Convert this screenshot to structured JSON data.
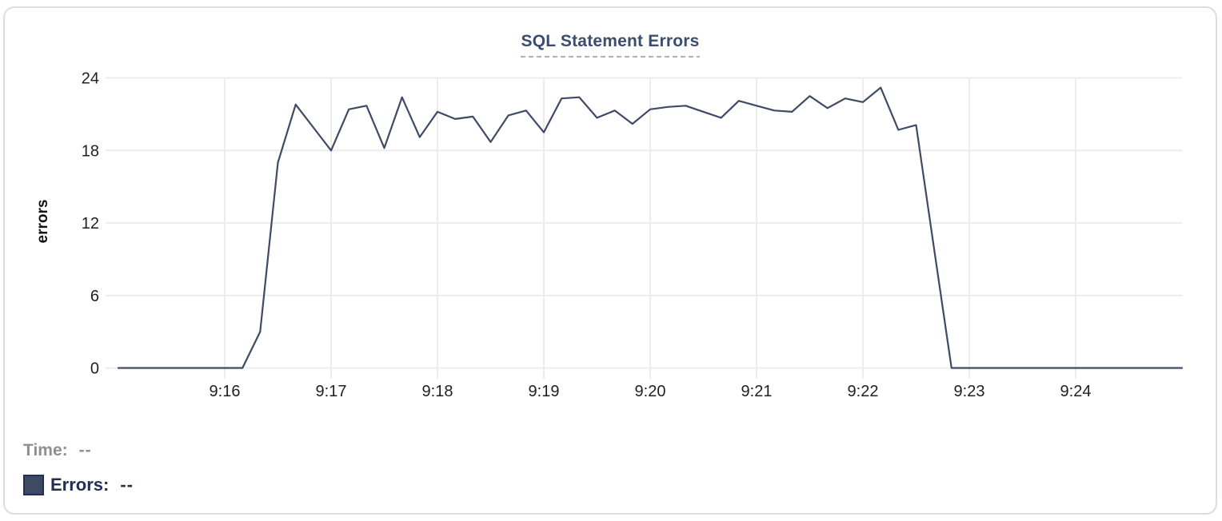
{
  "chart_data": {
    "type": "line",
    "title": "SQL Statement Errors",
    "xlabel": "",
    "ylabel": "errors",
    "x_tick_labels": [
      "9:16",
      "9:17",
      "9:18",
      "9:19",
      "9:20",
      "9:21",
      "9:22",
      "9:23",
      "9:24"
    ],
    "y_ticks": [
      0,
      6,
      12,
      18,
      24
    ],
    "ylim": [
      0,
      24
    ],
    "x_range": [
      "9:15:00",
      "9:25:00"
    ],
    "grid": true,
    "legend_position": "below-left",
    "series": [
      {
        "name": "Errors",
        "color": "#3e4a66",
        "points": [
          [
            "9:15:00",
            0
          ],
          [
            "9:15:10",
            0
          ],
          [
            "9:15:20",
            0
          ],
          [
            "9:15:30",
            0
          ],
          [
            "9:15:40",
            0
          ],
          [
            "9:15:50",
            0
          ],
          [
            "9:16:00",
            0
          ],
          [
            "9:16:10",
            0
          ],
          [
            "9:16:20",
            3
          ],
          [
            "9:16:30",
            17
          ],
          [
            "9:16:40",
            21.8
          ],
          [
            "9:16:50",
            19.9
          ],
          [
            "9:17:00",
            18
          ],
          [
            "9:17:10",
            21.4
          ],
          [
            "9:17:20",
            21.7
          ],
          [
            "9:17:30",
            18.2
          ],
          [
            "9:17:40",
            22.4
          ],
          [
            "9:17:50",
            19.1
          ],
          [
            "9:18:00",
            21.2
          ],
          [
            "9:18:10",
            20.6
          ],
          [
            "9:18:20",
            20.8
          ],
          [
            "9:18:30",
            18.7
          ],
          [
            "9:18:40",
            20.9
          ],
          [
            "9:18:50",
            21.3
          ],
          [
            "9:19:00",
            19.5
          ],
          [
            "9:19:10",
            22.3
          ],
          [
            "9:19:20",
            22.4
          ],
          [
            "9:19:30",
            20.7
          ],
          [
            "9:19:40",
            21.3
          ],
          [
            "9:19:50",
            20.2
          ],
          [
            "9:20:00",
            21.4
          ],
          [
            "9:20:10",
            21.6
          ],
          [
            "9:20:20",
            21.7
          ],
          [
            "9:20:30",
            21.2
          ],
          [
            "9:20:40",
            20.7
          ],
          [
            "9:20:50",
            22.1
          ],
          [
            "9:21:00",
            21.7
          ],
          [
            "9:21:10",
            21.3
          ],
          [
            "9:21:20",
            21.2
          ],
          [
            "9:21:30",
            22.5
          ],
          [
            "9:21:40",
            21.5
          ],
          [
            "9:21:50",
            22.3
          ],
          [
            "9:22:00",
            22.0
          ],
          [
            "9:22:10",
            23.2
          ],
          [
            "9:22:20",
            19.7
          ],
          [
            "9:22:30",
            20.1
          ],
          [
            "9:22:40",
            10
          ],
          [
            "9:22:50",
            0
          ],
          [
            "9:23:00",
            0
          ],
          [
            "9:23:10",
            0
          ],
          [
            "9:23:20",
            0
          ],
          [
            "9:23:30",
            0
          ],
          [
            "9:23:40",
            0
          ],
          [
            "9:23:50",
            0
          ],
          [
            "9:24:00",
            0
          ],
          [
            "9:24:10",
            0
          ],
          [
            "9:24:20",
            0
          ],
          [
            "9:24:30",
            0
          ],
          [
            "9:24:40",
            0
          ],
          [
            "9:24:50",
            0
          ],
          [
            "9:25:00",
            0
          ]
        ]
      }
    ]
  },
  "tooltip": {
    "time_label": "Time:",
    "time_value": "--",
    "errors_label": "Errors:",
    "errors_value": "--"
  },
  "colors": {
    "line": "#3e4a66",
    "grid": "#ececec",
    "tick_text": "#1f1f21",
    "title_text": "#3b4d6e",
    "title_underline": "#a9b0bf",
    "time_label_text": "#8e8e93",
    "errors_label_text": "#232e52",
    "swatch_fill": "#3e4a63",
    "swatch_border": "#232e52",
    "card_border": "#dcdce0"
  }
}
